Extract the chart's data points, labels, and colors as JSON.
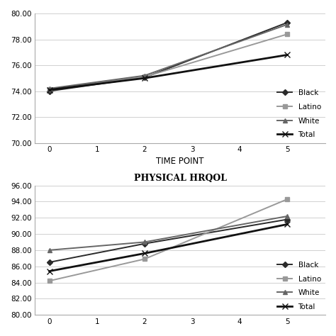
{
  "upper": {
    "x": [
      0,
      2,
      5
    ],
    "series": {
      "Black": [
        74.0,
        75.05,
        79.3
      ],
      "Latino": [
        74.15,
        75.1,
        78.4
      ],
      "White": [
        74.2,
        75.2,
        79.15
      ],
      "Total": [
        74.1,
        75.0,
        76.8
      ]
    },
    "ylim": [
      70.0,
      80.0
    ],
    "yticks": [
      70.0,
      72.0,
      74.0,
      76.0,
      78.0,
      80.0
    ],
    "xticks": [
      0,
      1,
      2,
      3,
      4,
      5
    ],
    "xlabel": "TIME POINT"
  },
  "lower": {
    "title": "PHYSICAL HRQOL",
    "x": [
      0,
      2,
      5
    ],
    "series": {
      "Black": [
        86.5,
        88.8,
        91.8
      ],
      "Latino": [
        84.2,
        86.9,
        94.3
      ],
      "White": [
        88.0,
        89.0,
        92.2
      ],
      "Total": [
        85.4,
        87.6,
        91.2
      ]
    },
    "ylim": [
      80.0,
      96.0
    ],
    "yticks": [
      80.0,
      82.0,
      84.0,
      86.0,
      88.0,
      90.0,
      92.0,
      94.0,
      96.0
    ],
    "xticks": [
      0,
      1,
      2,
      3,
      4,
      5
    ],
    "xlabel": ""
  },
  "series_styles": {
    "Black": {
      "color": "#2a2a2a",
      "marker": "D",
      "markersize": 4.5,
      "linewidth": 1.4
    },
    "Latino": {
      "color": "#999999",
      "marker": "s",
      "markersize": 4.5,
      "linewidth": 1.4
    },
    "White": {
      "color": "#666666",
      "marker": "^",
      "markersize": 5,
      "linewidth": 1.4
    },
    "Total": {
      "color": "#111111",
      "marker": "x",
      "markersize": 6,
      "linewidth": 2.0
    }
  },
  "legend_order": [
    "Black",
    "Latino",
    "White",
    "Total"
  ],
  "background_color": "#ffffff",
  "grid_color": "#d0d0d0"
}
